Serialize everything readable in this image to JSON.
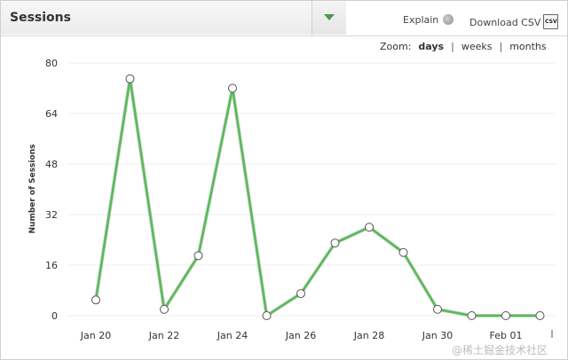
{
  "header": {
    "title": "Sessions",
    "explain_label": "Explain",
    "download_label": "Download CSV",
    "csv_icon_text": "CSV"
  },
  "zoom": {
    "label": "Zoom:",
    "options": [
      "days",
      "weeks",
      "months"
    ],
    "active": "days"
  },
  "watermark": "@稀土掘金技术社区",
  "colors": {
    "line": "#5cb85c",
    "line_dark": "#3e8e3e",
    "grid": "#eeeeee"
  },
  "chart_data": {
    "type": "line",
    "ylabel": "Number of Sessions",
    "ylim": [
      0,
      80
    ],
    "yticks": [
      0,
      16,
      32,
      48,
      64,
      80
    ],
    "x": [
      "Jan 20",
      "Jan 21",
      "Jan 22",
      "Jan 23",
      "Jan 24",
      "Jan 25",
      "Jan 26",
      "Jan 27",
      "Jan 28",
      "Jan 29",
      "Jan 30",
      "Jan 31",
      "Feb 01",
      "Feb 02"
    ],
    "xtick_labels": [
      "Jan 20",
      "",
      "Jan 22",
      "",
      "Jan 24",
      "",
      "Jan 26",
      "",
      "Jan 28",
      "",
      "Jan 30",
      "",
      "Feb 01",
      ""
    ],
    "series": [
      {
        "values": [
          5,
          75,
          2,
          19,
          72,
          0,
          7,
          23,
          28,
          20,
          2,
          0,
          0,
          0
        ]
      }
    ]
  }
}
